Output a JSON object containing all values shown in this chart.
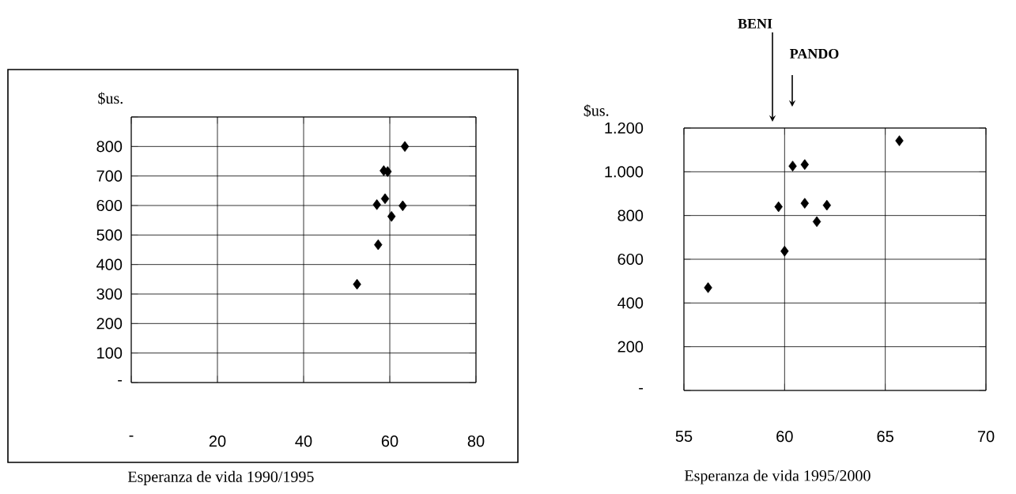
{
  "chart_data": [
    {
      "type": "scatter",
      "xlabel": "Esperanza de vida 1990/1995",
      "ylabel": "$us.",
      "color": "#000000",
      "marker": "diamond",
      "grid": true,
      "x": [
        63.5,
        58.6,
        59.5,
        58.9,
        57.0,
        63.0,
        60.4,
        57.3,
        52.4
      ],
      "values": [
        800,
        718,
        715,
        623,
        603,
        599,
        563,
        467,
        333
      ],
      "xlim": [
        0,
        80
      ],
      "xticks": [
        {
          "value": 0,
          "label": "-"
        },
        20,
        40,
        60,
        80
      ],
      "ylim": [
        0,
        900
      ],
      "yticks": [
        {
          "value": 0,
          "label": "-"
        },
        100,
        200,
        300,
        400,
        500,
        600,
        700,
        800,
        {
          "value": 900,
          "label": null
        }
      ]
    },
    {
      "type": "scatter",
      "xlabel": "Esperanza de vida 1995/2000",
      "ylabel": "$us.",
      "color": "#000000",
      "marker": "diamond",
      "grid": true,
      "x": [
        56.2,
        59.7,
        60.0,
        60.4,
        61.0,
        61.0,
        62.1,
        61.6,
        65.7
      ],
      "values": [
        470,
        840,
        637,
        1026,
        1033,
        856,
        847,
        772,
        1142
      ],
      "xlim": [
        55,
        70
      ],
      "xticks": [
        55,
        60,
        65,
        70
      ],
      "ylim": [
        0,
        1200
      ],
      "yticks": [
        {
          "value": 0,
          "label": "-"
        },
        200,
        400,
        600,
        800,
        {
          "value": 1000,
          "label": "1.000"
        },
        {
          "value": 1200,
          "label": "1.200"
        }
      ],
      "annotations": [
        "BENI",
        "PANDO"
      ]
    }
  ]
}
